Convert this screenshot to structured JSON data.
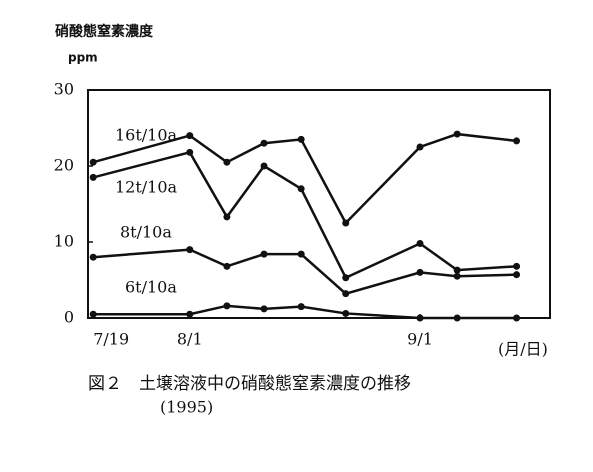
{
  "chart_data": {
    "type": "line",
    "title": "硝酸態窒素濃度",
    "y_label": "ppm",
    "x_label": "(月/日)",
    "caption": "図２　土壌溶液中の硝酸態窒素濃度の推移",
    "caption_year": "(1995)",
    "x": [
      200,
      213,
      218,
      223,
      228,
      234,
      244,
      249,
      257
    ],
    "xlim": [
      199.3,
      261.5
    ],
    "xticks": [
      {
        "value": 200,
        "label": "7/19"
      },
      {
        "value": 213,
        "label": "8/1"
      },
      {
        "value": 244,
        "label": "9/1"
      }
    ],
    "ylim": [
      0,
      30
    ],
    "yticks": [
      0,
      10,
      20,
      30
    ],
    "series": [
      {
        "name": "16t/10a",
        "color": "#111111",
        "values": [
          20.5,
          24,
          20.5,
          23,
          23.5,
          12.5,
          22.5,
          24.2,
          23.3
        ]
      },
      {
        "name": "12t/10a",
        "color": "#111111",
        "values": [
          18.5,
          21.8,
          13.3,
          20,
          17,
          5.3,
          9.8,
          6.3,
          6.8
        ]
      },
      {
        "name": "8t/10a",
        "color": "#111111",
        "values": [
          8,
          9,
          6.8,
          8.4,
          8.4,
          3.2,
          6,
          5.5,
          5.7
        ]
      },
      {
        "name": "6t/10a",
        "color": "#111111",
        "values": [
          0.5,
          0.5,
          1.6,
          1.2,
          1.5,
          0.6,
          0,
          0,
          0
        ]
      }
    ]
  }
}
